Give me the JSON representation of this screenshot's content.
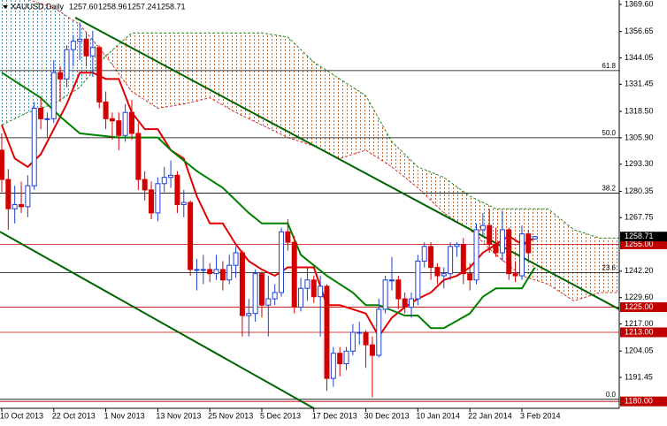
{
  "chart_data": {
    "type": "candlestick",
    "header": {
      "symbol": "XAUUSD,Daily",
      "value_labels": [
        "1257.60",
        "1258.96",
        "1257.24",
        "1258.71"
      ]
    },
    "categories": [
      "10 Oct 2013",
      null,
      null,
      null,
      null,
      null,
      null,
      null,
      "22 Oct 2013",
      null,
      null,
      null,
      null,
      null,
      null,
      null,
      "1 Nov 2013",
      null,
      null,
      null,
      null,
      null,
      null,
      null,
      "13 Nov 2013",
      null,
      null,
      null,
      null,
      null,
      null,
      null,
      "25 Nov 2013",
      null,
      null,
      null,
      null,
      null,
      null,
      null,
      "5 Dec 2013",
      null,
      null,
      null,
      null,
      null,
      null,
      null,
      "17 Dec 2013",
      null,
      null,
      null,
      null,
      null,
      null,
      null,
      "30 Dec 2013",
      null,
      null,
      null,
      null,
      null,
      null,
      null,
      "10 Jan 2014",
      null,
      null,
      null,
      null,
      null,
      null,
      null,
      "22 Jan 2014",
      null,
      null,
      null,
      null,
      null,
      null,
      null,
      "3 Feb 2014",
      null,
      null
    ],
    "ohlc": [
      [
        1300,
        1308,
        1280,
        1286
      ],
      [
        1286,
        1291,
        1262,
        1272
      ],
      [
        1272,
        1283,
        1265,
        1274
      ],
      [
        1274,
        1285,
        1270,
        1273
      ],
      [
        1273,
        1288,
        1268,
        1283
      ],
      [
        1283,
        1323,
        1281,
        1320
      ],
      [
        1320,
        1325,
        1310,
        1315
      ],
      [
        1315,
        1318,
        1306,
        1315
      ],
      [
        1315,
        1343,
        1313,
        1337
      ],
      [
        1337,
        1340,
        1323,
        1334
      ],
      [
        1334,
        1350,
        1330,
        1348
      ],
      [
        1348,
        1355,
        1340,
        1352
      ],
      [
        1352,
        1361,
        1343,
        1353
      ],
      [
        1353,
        1356,
        1340,
        1345
      ],
      [
        1345,
        1357,
        1335,
        1349
      ],
      [
        1349,
        1350,
        1320,
        1323
      ],
      [
        1323,
        1328,
        1310,
        1315
      ],
      [
        1315,
        1318,
        1305,
        1314
      ],
      [
        1314,
        1318,
        1300,
        1307
      ],
      [
        1307,
        1322,
        1304,
        1318
      ],
      [
        1318,
        1324,
        1305,
        1308
      ],
      [
        1308,
        1313,
        1281,
        1286
      ],
      [
        1286,
        1290,
        1276,
        1281
      ],
      [
        1281,
        1285,
        1267,
        1270
      ],
      [
        1270,
        1287,
        1266,
        1284
      ],
      [
        1284,
        1292,
        1280,
        1287
      ],
      [
        1287,
        1295,
        1282,
        1288
      ],
      [
        1288,
        1290,
        1270,
        1274
      ],
      [
        1274,
        1281,
        1268,
        1275
      ],
      [
        1275,
        1276,
        1240,
        1243
      ],
      [
        1243,
        1248,
        1233,
        1243
      ],
      [
        1243,
        1250,
        1236,
        1243
      ],
      [
        1243,
        1246,
        1237,
        1241
      ],
      [
        1241,
        1250,
        1238,
        1243
      ],
      [
        1243,
        1247,
        1233,
        1238
      ],
      [
        1238,
        1250,
        1236,
        1245
      ],
      [
        1245,
        1254,
        1239,
        1251
      ],
      [
        1251,
        1252,
        1211,
        1221
      ],
      [
        1221,
        1229,
        1211,
        1222
      ],
      [
        1222,
        1243,
        1218,
        1241
      ],
      [
        1241,
        1242,
        1220,
        1226
      ],
      [
        1226,
        1240,
        1211,
        1229
      ],
      [
        1229,
        1236,
        1226,
        1232
      ],
      [
        1232,
        1263,
        1230,
        1261
      ],
      [
        1261,
        1267,
        1252,
        1256
      ],
      [
        1256,
        1259,
        1222,
        1225
      ],
      [
        1225,
        1239,
        1223,
        1234
      ],
      [
        1234,
        1244,
        1228,
        1238
      ],
      [
        1238,
        1240,
        1227,
        1230
      ],
      [
        1230,
        1240,
        1211,
        1235
      ],
      [
        1235,
        1236,
        1185,
        1191
      ],
      [
        1191,
        1206,
        1187,
        1203
      ],
      [
        1203,
        1206,
        1192,
        1198
      ],
      [
        1198,
        1206,
        1195,
        1204
      ],
      [
        1204,
        1217,
        1202,
        1213
      ],
      [
        1213,
        1218,
        1207,
        1213
      ],
      [
        1213,
        1214,
        1196,
        1207
      ],
      [
        1207,
        1211,
        1182,
        1202
      ],
      [
        1202,
        1229,
        1201,
        1224
      ],
      [
        1224,
        1240,
        1222,
        1238
      ],
      [
        1238,
        1249,
        1233,
        1238
      ],
      [
        1238,
        1240,
        1224,
        1229
      ],
      [
        1229,
        1232,
        1222,
        1225
      ],
      [
        1225,
        1232,
        1220,
        1229
      ],
      [
        1229,
        1250,
        1226,
        1247
      ],
      [
        1247,
        1256,
        1244,
        1254
      ],
      [
        1254,
        1256,
        1238,
        1244
      ],
      [
        1244,
        1246,
        1236,
        1240
      ],
      [
        1240,
        1244,
        1234,
        1241
      ],
      [
        1241,
        1256,
        1238,
        1254
      ],
      [
        1254,
        1256,
        1249,
        1255
      ],
      [
        1255,
        1258,
        1236,
        1241
      ],
      [
        1241,
        1246,
        1233,
        1238
      ],
      [
        1238,
        1265,
        1236,
        1262
      ],
      [
        1262,
        1270,
        1259,
        1264
      ],
      [
        1264,
        1272,
        1251,
        1255
      ],
      [
        1255,
        1263,
        1249,
        1251
      ],
      [
        1251,
        1271,
        1247,
        1262
      ],
      [
        1262,
        1263,
        1238,
        1241
      ],
      [
        1241,
        1247,
        1237,
        1240
      ],
      [
        1240,
        1264,
        1238,
        1260
      ],
      [
        1260,
        1262,
        1248,
        1251
      ],
      [
        1257.6,
        1258.96,
        1257.24,
        1258.71
      ]
    ],
    "up_color": "#1f3fd0",
    "down_color": "#d40000",
    "xlim": [
      -0.27,
      94.97
    ],
    "ylim": [
      1176.7,
      1371.7
    ],
    "yticks": [
      {
        "value": 1369.6,
        "label": "1369.60"
      },
      {
        "value": 1356.65,
        "label": "1356.65"
      },
      {
        "value": 1344.05,
        "label": "1344.05"
      },
      {
        "value": 1331.45,
        "label": "1331.45"
      },
      {
        "value": 1318.5,
        "label": "1318.50"
      },
      {
        "value": 1305.9,
        "label": "1305.90"
      },
      {
        "value": 1293.3,
        "label": "1293.30"
      },
      {
        "value": 1280.35,
        "label": "1280.35"
      },
      {
        "value": 1267.75,
        "label": "1267.75"
      },
      {
        "value": 1242.2,
        "label": "1242.20"
      },
      {
        "value": 1229.6,
        "label": "1229.60"
      },
      {
        "value": 1217,
        "label": "1217.00"
      },
      {
        "value": 1204.05,
        "label": "1204.05"
      },
      {
        "value": 1191.45,
        "label": "1191.45"
      }
    ],
    "current_price": {
      "value": 1258.71,
      "label": "1258.71"
    },
    "levels": [
      {
        "value": 1255,
        "label": "1255.00",
        "color": "#c00000"
      },
      {
        "value": 1225,
        "label": "1225.00",
        "color": "#c00000"
      },
      {
        "value": 1213,
        "label": "1213.00",
        "color": "#c00000"
      },
      {
        "value": 1180,
        "label": "1180.00",
        "color": "#c00000"
      }
    ],
    "fib_levels": [
      {
        "value": 1338,
        "label": "61.8"
      },
      {
        "value": 1305.9,
        "label": "50.0"
      },
      {
        "value": 1279.5,
        "label": "38.2"
      },
      {
        "value": 1241.5,
        "label": "23.6"
      },
      {
        "value": 1181,
        "label": "0.0"
      }
    ],
    "fib_color": "#000000",
    "lines": [
      {
        "color": "#e00000",
        "x": [
          0,
          2,
          4,
          6,
          8,
          10,
          12,
          14,
          16,
          18,
          20,
          22,
          24,
          26,
          28,
          30,
          32,
          34,
          36,
          38,
          40,
          42,
          44,
          46,
          48,
          50,
          52,
          54,
          56,
          58,
          60,
          62,
          64,
          66,
          68,
          70,
          72,
          74,
          76,
          78,
          80,
          82
        ],
        "values": [
          1312,
          1296,
          1292,
          1298,
          1310,
          1322,
          1337,
          1337,
          1334,
          1334,
          1318,
          1310,
          1310,
          1300,
          1296,
          1278,
          1265,
          1265,
          1255,
          1247,
          1243,
          1240,
          1244,
          1244,
          1244,
          1226,
          1226,
          1224,
          1222,
          1211,
          1220,
          1225,
          1229,
          1232,
          1238,
          1240,
          1244,
          1251,
          1255,
          1259,
          1255,
          1258
        ]
      },
      {
        "color": "#008000",
        "x": [
          0,
          6,
          9,
          12,
          18,
          24,
          26,
          30,
          34,
          38,
          40,
          44,
          46,
          48,
          50,
          52,
          54,
          56,
          58,
          62,
          64,
          66,
          68,
          72,
          74,
          76,
          80,
          82
        ],
        "values": [
          1337,
          1325,
          1316,
          1308,
          1306,
          1306,
          1300,
          1290,
          1282,
          1270,
          1265,
          1265,
          1250,
          1245,
          1240,
          1236,
          1232,
          1226,
          1226,
          1221,
          1221,
          1215,
          1215,
          1222,
          1230,
          1234,
          1234,
          1244
        ]
      }
    ],
    "cloud": {
      "x": [
        0,
        4,
        8,
        12,
        16,
        20,
        24,
        28,
        32,
        36,
        40,
        44,
        48,
        52,
        56,
        60,
        64,
        68,
        72,
        76,
        80,
        84,
        88,
        92,
        94.97
      ],
      "span_a": [
        1372,
        1372,
        1368,
        1360,
        1345,
        1328,
        1320,
        1322,
        1325,
        1318,
        1312,
        1306,
        1302,
        1296,
        1300,
        1292,
        1282,
        1270,
        1262,
        1250,
        1240,
        1236,
        1228,
        1232,
        1232
      ],
      "span_b": [
        1312,
        1318,
        1322,
        1330,
        1345,
        1356,
        1356,
        1356,
        1356,
        1356,
        1356,
        1354,
        1342,
        1334,
        1326,
        1304,
        1292,
        1287,
        1278,
        1272,
        1272,
        1272,
        1262,
        1258,
        1258
      ],
      "span_a_color": "#cc3333",
      "span_b_color": "#228b22",
      "bull_color": "#3f8fb0",
      "bear_color": "#c86428"
    },
    "trend_lines": [
      {
        "color": "#006400",
        "x": [
          11.3,
          94.97
        ],
        "values": [
          1363.3,
          1224
        ]
      },
      {
        "color": "#006400",
        "x": [
          -0.27,
          48
        ],
        "values": [
          1261,
          1176.7
        ]
      }
    ]
  }
}
